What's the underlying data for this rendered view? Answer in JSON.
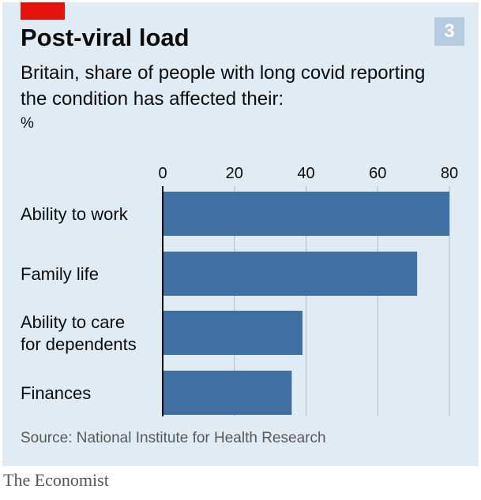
{
  "badge": "3",
  "colors": {
    "bar": "#3f6fa3",
    "grid": "#b9c6d0",
    "background": "#e1ebf3",
    "accent": "#e3120b"
  },
  "footer": {
    "source": "Source: National Institute for Health Research",
    "brand": "The Economist"
  },
  "chart_data": {
    "type": "bar",
    "orientation": "horizontal",
    "title": "Post-viral load",
    "subtitle": "Britain, share of people with long covid reporting the condition has affected their:",
    "unit": "%",
    "categories": [
      "Ability to work",
      "Family life",
      "Ability to care\nfor dependents",
      "Finances"
    ],
    "values": [
      80,
      71,
      39,
      36
    ],
    "xlim": [
      0,
      80
    ],
    "xticks": [
      0,
      20,
      40,
      60,
      80
    ],
    "grid": true,
    "legend": "none"
  }
}
